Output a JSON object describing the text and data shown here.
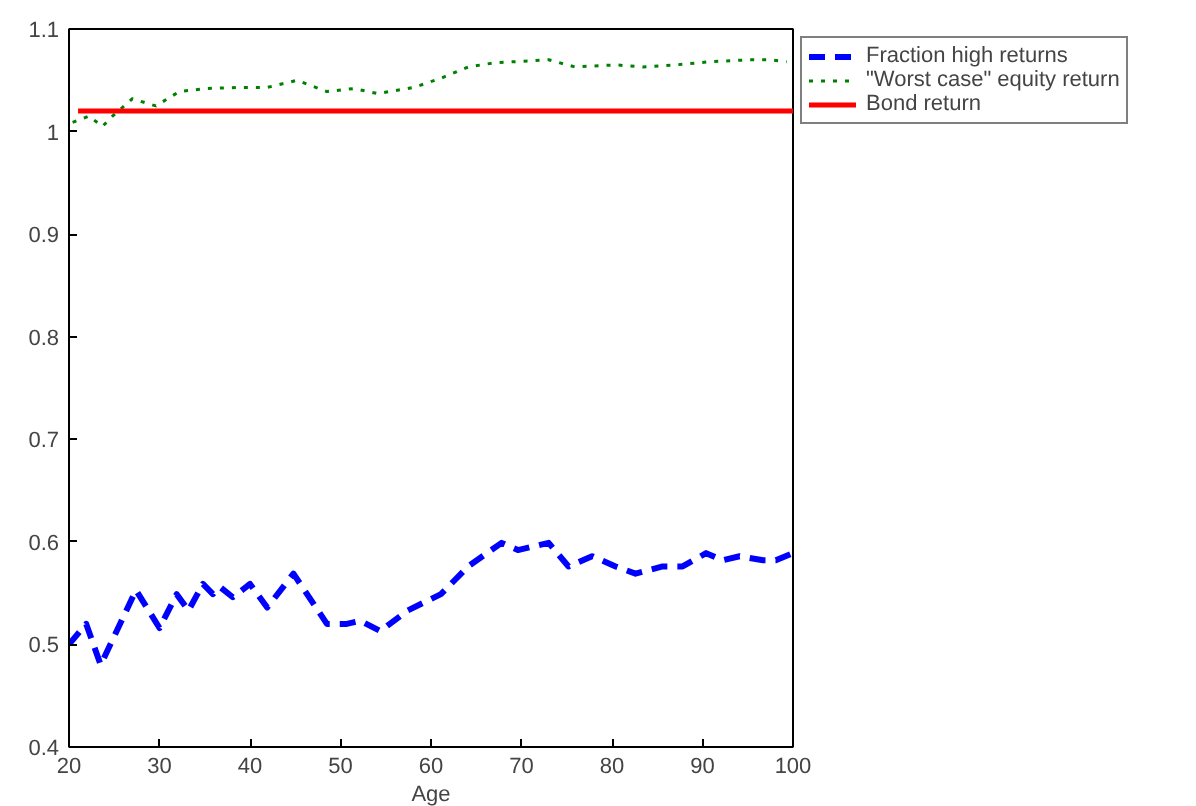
{
  "chart_data": {
    "type": "line",
    "xlabel": "Age",
    "xlim": [
      20,
      100
    ],
    "ylim": [
      0.4,
      1.1
    ],
    "xticks": [
      20,
      30,
      40,
      50,
      60,
      70,
      80,
      90,
      100
    ],
    "yticks": [
      0.4,
      0.5,
      0.6,
      0.7,
      0.8,
      0.9,
      1,
      1.1
    ],
    "grid": false,
    "legend": "top right",
    "marker": "none",
    "series": [
      {
        "name": "Fraction high returns",
        "color": "#0000ff",
        "line_style": "dashed",
        "x": [
          20,
          21.9,
          23.5,
          27.4,
          30,
          31.9,
          33.2,
          34.8,
          35.9,
          36.7,
          38.1,
          40,
          41.9,
          44.8,
          48.5,
          50.7,
          52.2,
          54.4,
          57.4,
          61.1,
          64.1,
          67.8,
          69.6,
          73,
          75.2,
          77.8,
          80.4,
          82.6,
          85.6,
          87.8,
          90.4,
          92.2,
          94.1,
          96.7,
          98.1,
          100
        ],
        "values": [
          0.5,
          0.52,
          0.48,
          0.553,
          0.516,
          0.549,
          0.533,
          0.559,
          0.549,
          0.556,
          0.546,
          0.559,
          0.536,
          0.569,
          0.52,
          0.52,
          0.523,
          0.513,
          0.533,
          0.549,
          0.576,
          0.599,
          0.592,
          0.599,
          0.576,
          0.586,
          0.576,
          0.569,
          0.576,
          0.576,
          0.589,
          0.582,
          0.586,
          0.582,
          0.582,
          0.589
        ]
      },
      {
        "name": "\"Worst case\" equity return",
        "color": "#008000",
        "line_style": "dotted",
        "x": [
          20.4,
          22.2,
          23.7,
          24.8,
          27,
          29.6,
          32.2,
          35.2,
          38.9,
          41.9,
          45.2,
          48.5,
          51.5,
          54.1,
          58.1,
          61.1,
          64.1,
          67,
          73,
          75.9,
          80.4,
          83.4,
          87,
          90.7,
          95.2,
          97.4,
          99.3
        ],
        "values": [
          1.009,
          1.015,
          1.005,
          1.015,
          1.032,
          1.025,
          1.039,
          1.042,
          1.043,
          1.043,
          1.05,
          1.039,
          1.042,
          1.037,
          1.043,
          1.052,
          1.063,
          1.067,
          1.07,
          1.063,
          1.065,
          1.063,
          1.065,
          1.068,
          1.07,
          1.07,
          1.068
        ]
      },
      {
        "name": "Bond return",
        "color": "#ff0000",
        "line_style": "solid",
        "x": [
          21,
          100
        ],
        "values": [
          1.02,
          1.02
        ]
      }
    ]
  }
}
